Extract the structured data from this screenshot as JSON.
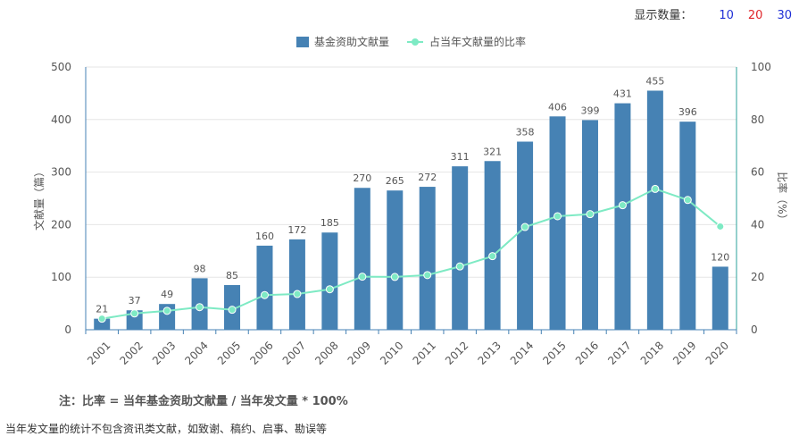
{
  "display": {
    "label": "显示数量：",
    "options": [
      {
        "label": "10",
        "color": "#1f2fd6"
      },
      {
        "label": "20",
        "color": "#e0262a"
      },
      {
        "label": "30",
        "color": "#1f2fd6"
      }
    ]
  },
  "chart_data": {
    "type": "bar",
    "categories": [
      "2001",
      "2002",
      "2003",
      "2004",
      "2005",
      "2006",
      "2007",
      "2008",
      "2009",
      "2010",
      "2011",
      "2012",
      "2013",
      "2014",
      "2015",
      "2016",
      "2017",
      "2018",
      "2019",
      "2020"
    ],
    "series": [
      {
        "name": "基金资助文献量",
        "type": "bar",
        "axis": "left",
        "color": "#4682b4",
        "values": [
          21,
          37,
          49,
          98,
          85,
          160,
          172,
          185,
          270,
          265,
          272,
          311,
          321,
          358,
          406,
          399,
          431,
          455,
          396,
          120
        ]
      },
      {
        "name": "占当年文献量的比率",
        "type": "line",
        "axis": "right",
        "color": "#7eeac4",
        "values": [
          4.2,
          6.2,
          7.2,
          8.6,
          7.6,
          13.2,
          13.6,
          15.4,
          20.2,
          20.1,
          20.8,
          24.1,
          28.0,
          39.1,
          43.2,
          44.0,
          47.4,
          53.6,
          49.4,
          39.3
        ]
      }
    ],
    "ylabel": "文献量（篇）",
    "y2label": "比率（%）",
    "ylim": [
      0,
      500
    ],
    "y2lim": [
      0,
      100
    ],
    "yticks": [
      0,
      100,
      200,
      300,
      400,
      500
    ],
    "y2ticks": [
      0,
      20,
      40,
      60,
      80,
      100
    ],
    "grid": true,
    "legend": "top-center"
  },
  "notes": {
    "formula": "注：比率 = 当年基金资助文献量 / 当年发文量 * 100%",
    "footnote": "当年发文量的统计不包含资讯类文献，如致谢、稿约、启事、勘误等"
  }
}
